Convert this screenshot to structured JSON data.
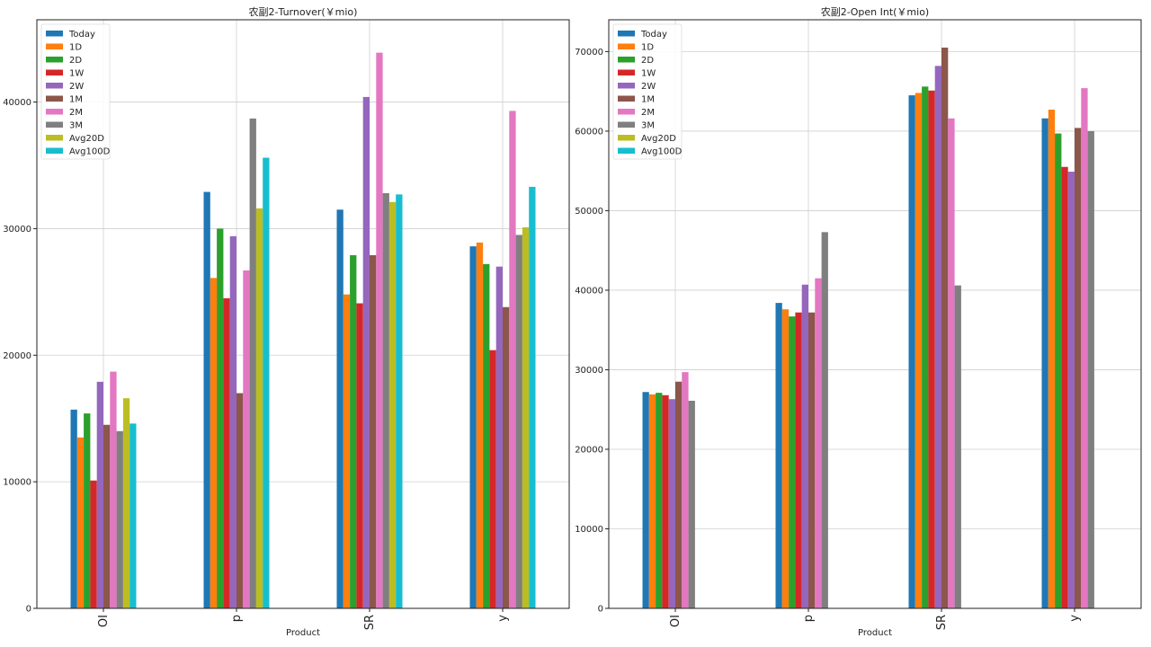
{
  "chart_data": [
    {
      "type": "bar",
      "title": "农副2-Turnover(￥mio)",
      "xlabel": "Product",
      "ylabel": "",
      "ylim": [
        0,
        46500
      ],
      "yticks": [
        0,
        10000,
        20000,
        30000,
        40000
      ],
      "grid": true,
      "legend_position": "top-left",
      "categories": [
        "OI",
        "p",
        "SR",
        "y"
      ],
      "series": [
        {
          "name": "Today",
          "color": "#1f77b4",
          "values": [
            15700,
            32900,
            31500,
            28600
          ]
        },
        {
          "name": "1D",
          "color": "#ff7f0e",
          "values": [
            13500,
            26100,
            24800,
            28900
          ]
        },
        {
          "name": "2D",
          "color": "#2ca02c",
          "values": [
            15400,
            30000,
            27900,
            27200
          ]
        },
        {
          "name": "1W",
          "color": "#d62728",
          "values": [
            10100,
            24500,
            24100,
            20400
          ]
        },
        {
          "name": "2W",
          "color": "#9467bd",
          "values": [
            17900,
            29400,
            40400,
            27000
          ]
        },
        {
          "name": "1M",
          "color": "#8c564b",
          "values": [
            14500,
            17000,
            27900,
            23800
          ]
        },
        {
          "name": "2M",
          "color": "#e377c2",
          "values": [
            18700,
            26700,
            43900,
            39300
          ]
        },
        {
          "name": "3M",
          "color": "#7f7f7f",
          "values": [
            14000,
            38700,
            32800,
            29500
          ]
        },
        {
          "name": "Avg20D",
          "color": "#bcbd22",
          "values": [
            16600,
            31600,
            32100,
            30100
          ]
        },
        {
          "name": "Avg100D",
          "color": "#17becf",
          "values": [
            14600,
            35600,
            32700,
            33300
          ]
        }
      ]
    },
    {
      "type": "bar",
      "title": "农副2-Open Int(￥mio)",
      "xlabel": "Product",
      "ylabel": "",
      "ylim": [
        0,
        74000
      ],
      "yticks": [
        0,
        10000,
        20000,
        30000,
        40000,
        50000,
        60000,
        70000
      ],
      "grid": true,
      "legend_position": "top-left",
      "categories": [
        "OI",
        "p",
        "SR",
        "y"
      ],
      "series": [
        {
          "name": "Today",
          "color": "#1f77b4",
          "values": [
            27200,
            38400,
            64500,
            61600
          ]
        },
        {
          "name": "1D",
          "color": "#ff7f0e",
          "values": [
            26900,
            37600,
            64800,
            62700
          ]
        },
        {
          "name": "2D",
          "color": "#2ca02c",
          "values": [
            27100,
            36700,
            65600,
            59700
          ]
        },
        {
          "name": "1W",
          "color": "#d62728",
          "values": [
            26800,
            37200,
            65100,
            55500
          ]
        },
        {
          "name": "2W",
          "color": "#9467bd",
          "values": [
            26300,
            40700,
            68200,
            54900
          ]
        },
        {
          "name": "1M",
          "color": "#8c564b",
          "values": [
            28500,
            37200,
            70500,
            60400
          ]
        },
        {
          "name": "2M",
          "color": "#e377c2",
          "values": [
            29700,
            41500,
            61600,
            65400
          ]
        },
        {
          "name": "3M",
          "color": "#7f7f7f",
          "values": [
            26100,
            47300,
            40600,
            60000
          ]
        },
        {
          "name": "Avg20D",
          "color": "#bcbd22",
          "values": [
            null,
            null,
            null,
            null
          ]
        },
        {
          "name": "Avg100D",
          "color": "#17becf",
          "values": [
            null,
            null,
            null,
            null
          ]
        }
      ]
    }
  ]
}
